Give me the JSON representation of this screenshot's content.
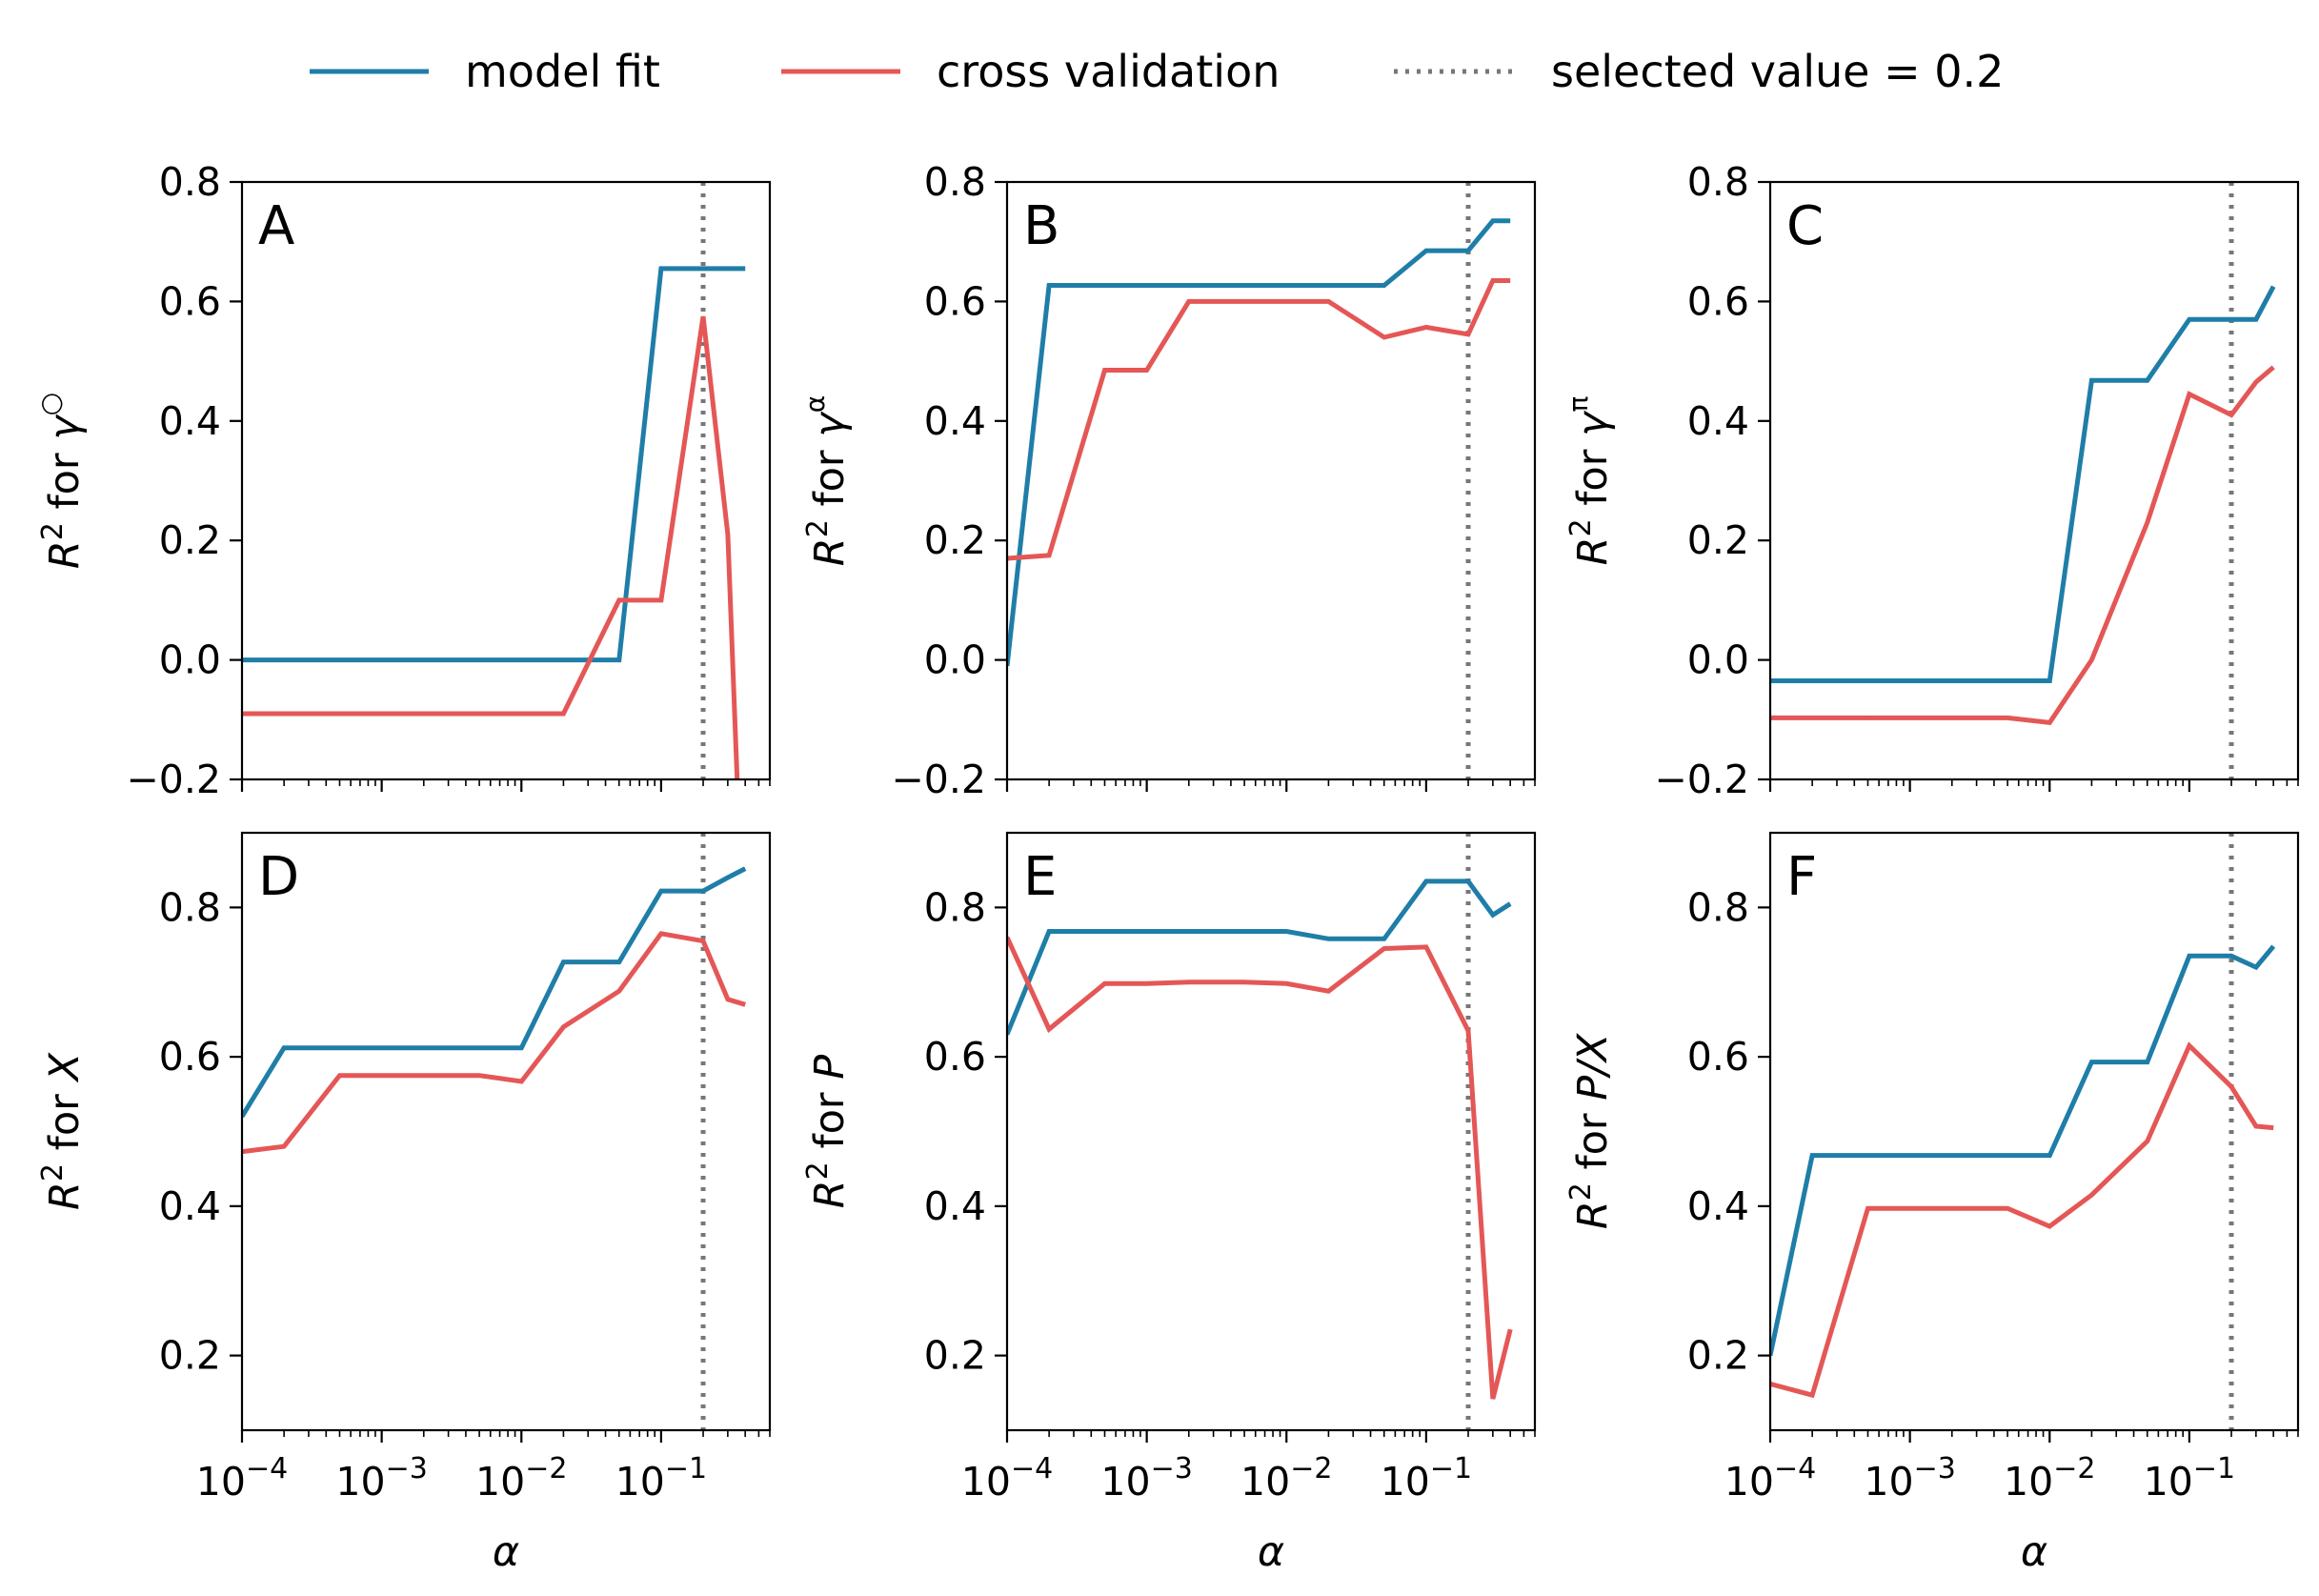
{
  "colors": {
    "model_fit": "#1f7ea8",
    "cross_validation": "#e45756",
    "selected": "#777777"
  },
  "legend": {
    "model_fit": "model fit",
    "cross_validation": "cross validation",
    "selected": "selected value = 0.2"
  },
  "chart_data": [
    {
      "panel": "A",
      "type": "line",
      "ylabel_prefix": "R",
      "ylabel_sup": "2",
      "ylabel_for": " for ",
      "ylabel_var": "γ",
      "ylabel_var_sup": "○",
      "xlabel": "",
      "xscale": "log",
      "xlim": [
        0.0001,
        0.6
      ],
      "ylim": [
        -0.2,
        0.8
      ],
      "yticks": [
        -0.2,
        0.0,
        0.2,
        0.4,
        0.6,
        0.8
      ],
      "ytick_labels": [
        "−0.2",
        "0.0",
        "0.2",
        "0.4",
        "0.6",
        "0.8"
      ],
      "selected_x": 0.2,
      "series": [
        {
          "name": "model fit",
          "x": [
            0.0001,
            0.0002,
            0.0005,
            0.001,
            0.002,
            0.005,
            0.01,
            0.02,
            0.05,
            0.1,
            0.2,
            0.3,
            0.4
          ],
          "y": [
            0.0,
            0.0,
            0.0,
            0.0,
            0.0,
            0.0,
            0.0,
            0.0,
            0.0,
            0.655,
            0.655,
            0.655,
            0.655
          ]
        },
        {
          "name": "cross validation",
          "x": [
            0.0001,
            0.0002,
            0.0005,
            0.001,
            0.002,
            0.005,
            0.01,
            0.02,
            0.05,
            0.1,
            0.2,
            0.3,
            0.35
          ],
          "y": [
            -0.09,
            -0.09,
            -0.09,
            -0.09,
            -0.09,
            -0.09,
            -0.09,
            -0.09,
            0.1,
            0.1,
            0.575,
            0.21,
            -0.2
          ]
        }
      ]
    },
    {
      "panel": "B",
      "type": "line",
      "ylabel_prefix": "R",
      "ylabel_sup": "2",
      "ylabel_for": " for ",
      "ylabel_var": "γ",
      "ylabel_var_sup": "α",
      "xlabel": "",
      "xscale": "log",
      "xlim": [
        0.0001,
        0.6
      ],
      "ylim": [
        -0.2,
        0.8
      ],
      "yticks": [
        -0.2,
        0.0,
        0.2,
        0.4,
        0.6,
        0.8
      ],
      "ytick_labels": [
        "−0.2",
        "0.0",
        "0.2",
        "0.4",
        "0.6",
        "0.8"
      ],
      "selected_x": 0.2,
      "series": [
        {
          "name": "model fit",
          "x": [
            0.0001,
            0.0002,
            0.0005,
            0.001,
            0.002,
            0.005,
            0.01,
            0.02,
            0.05,
            0.1,
            0.2,
            0.3,
            0.4
          ],
          "y": [
            -0.01,
            0.627,
            0.627,
            0.627,
            0.627,
            0.627,
            0.627,
            0.627,
            0.627,
            0.685,
            0.685,
            0.735,
            0.735
          ]
        },
        {
          "name": "cross validation",
          "x": [
            0.0001,
            0.0002,
            0.0005,
            0.001,
            0.002,
            0.005,
            0.01,
            0.02,
            0.05,
            0.1,
            0.2,
            0.3,
            0.4
          ],
          "y": [
            0.17,
            0.175,
            0.485,
            0.485,
            0.6,
            0.6,
            0.6,
            0.6,
            0.54,
            0.557,
            0.545,
            0.635,
            0.635
          ]
        }
      ]
    },
    {
      "panel": "C",
      "type": "line",
      "ylabel_prefix": "R",
      "ylabel_sup": "2",
      "ylabel_for": " for ",
      "ylabel_var": "γ",
      "ylabel_var_sup": "π",
      "xlabel": "",
      "xscale": "log",
      "xlim": [
        0.0001,
        0.6
      ],
      "ylim": [
        -0.2,
        0.8
      ],
      "yticks": [
        -0.2,
        0.0,
        0.2,
        0.4,
        0.6,
        0.8
      ],
      "ytick_labels": [
        "−0.2",
        "0.0",
        "0.2",
        "0.4",
        "0.6",
        "0.8"
      ],
      "selected_x": 0.2,
      "series": [
        {
          "name": "model fit",
          "x": [
            0.0001,
            0.0002,
            0.0005,
            0.001,
            0.002,
            0.005,
            0.01,
            0.02,
            0.05,
            0.1,
            0.2,
            0.3,
            0.4
          ],
          "y": [
            -0.035,
            -0.035,
            -0.035,
            -0.035,
            -0.035,
            -0.035,
            -0.035,
            0.468,
            0.468,
            0.57,
            0.57,
            0.57,
            0.625
          ]
        },
        {
          "name": "cross validation",
          "x": [
            0.0001,
            0.0002,
            0.0005,
            0.001,
            0.002,
            0.005,
            0.01,
            0.02,
            0.05,
            0.1,
            0.2,
            0.3,
            0.4
          ],
          "y": [
            -0.097,
            -0.097,
            -0.097,
            -0.097,
            -0.097,
            -0.097,
            -0.105,
            0.0,
            0.23,
            0.445,
            0.41,
            0.465,
            0.49
          ]
        }
      ]
    },
    {
      "panel": "D",
      "type": "line",
      "ylabel_prefix": "R",
      "ylabel_sup": "2",
      "ylabel_for": " for ",
      "ylabel_var": "X",
      "ylabel_var_sup": "",
      "xlabel": "α",
      "xscale": "log",
      "xlim": [
        0.0001,
        0.6
      ],
      "ylim": [
        0.1,
        0.9
      ],
      "yticks": [
        0.2,
        0.4,
        0.6,
        0.8
      ],
      "ytick_labels": [
        "0.2",
        "0.4",
        "0.6",
        "0.8"
      ],
      "selected_x": 0.2,
      "series": [
        {
          "name": "model fit",
          "x": [
            0.0001,
            0.0002,
            0.0005,
            0.001,
            0.002,
            0.005,
            0.01,
            0.02,
            0.05,
            0.1,
            0.2,
            0.3,
            0.4
          ],
          "y": [
            0.52,
            0.612,
            0.612,
            0.612,
            0.612,
            0.612,
            0.612,
            0.727,
            0.727,
            0.822,
            0.822,
            0.84,
            0.852
          ]
        },
        {
          "name": "cross validation",
          "x": [
            0.0001,
            0.0002,
            0.0005,
            0.001,
            0.002,
            0.005,
            0.01,
            0.02,
            0.05,
            0.1,
            0.2,
            0.3,
            0.4
          ],
          "y": [
            0.473,
            0.48,
            0.575,
            0.575,
            0.575,
            0.575,
            0.567,
            0.64,
            0.688,
            0.765,
            0.755,
            0.677,
            0.67
          ]
        }
      ]
    },
    {
      "panel": "E",
      "type": "line",
      "ylabel_prefix": "R",
      "ylabel_sup": "2",
      "ylabel_for": " for ",
      "ylabel_var": "P",
      "ylabel_var_sup": "",
      "xlabel": "α",
      "xscale": "log",
      "xlim": [
        0.0001,
        0.6
      ],
      "ylim": [
        0.1,
        0.9
      ],
      "yticks": [
        0.2,
        0.4,
        0.6,
        0.8
      ],
      "ytick_labels": [
        "0.2",
        "0.4",
        "0.6",
        "0.8"
      ],
      "selected_x": 0.2,
      "series": [
        {
          "name": "model fit",
          "x": [
            0.0001,
            0.0002,
            0.0005,
            0.001,
            0.002,
            0.005,
            0.01,
            0.02,
            0.05,
            0.1,
            0.2,
            0.3,
            0.4
          ],
          "y": [
            0.63,
            0.768,
            0.768,
            0.768,
            0.768,
            0.768,
            0.768,
            0.758,
            0.758,
            0.835,
            0.835,
            0.79,
            0.805
          ]
        },
        {
          "name": "cross validation",
          "x": [
            0.0001,
            0.0002,
            0.0005,
            0.001,
            0.002,
            0.005,
            0.01,
            0.02,
            0.05,
            0.1,
            0.2,
            0.3,
            0.4
          ],
          "y": [
            0.76,
            0.637,
            0.698,
            0.698,
            0.7,
            0.7,
            0.698,
            0.688,
            0.745,
            0.747,
            0.635,
            0.142,
            0.235
          ]
        }
      ]
    },
    {
      "panel": "F",
      "type": "line",
      "ylabel_prefix": "R",
      "ylabel_sup": "2",
      "ylabel_for": " for ",
      "ylabel_var": "P/X",
      "ylabel_var_sup": "",
      "xlabel": "α",
      "xscale": "log",
      "xlim": [
        0.0001,
        0.6
      ],
      "ylim": [
        0.1,
        0.9
      ],
      "yticks": [
        0.2,
        0.4,
        0.6,
        0.8
      ],
      "ytick_labels": [
        "0.2",
        "0.4",
        "0.6",
        "0.8"
      ],
      "selected_x": 0.2,
      "series": [
        {
          "name": "model fit",
          "x": [
            0.0001,
            0.0002,
            0.0005,
            0.001,
            0.002,
            0.005,
            0.01,
            0.02,
            0.05,
            0.1,
            0.2,
            0.3,
            0.4
          ],
          "y": [
            0.2,
            0.468,
            0.468,
            0.468,
            0.468,
            0.468,
            0.468,
            0.593,
            0.593,
            0.735,
            0.735,
            0.72,
            0.748
          ]
        },
        {
          "name": "cross validation",
          "x": [
            0.0001,
            0.0002,
            0.0005,
            0.001,
            0.002,
            0.005,
            0.01,
            0.02,
            0.05,
            0.1,
            0.2,
            0.3,
            0.4
          ],
          "y": [
            0.162,
            0.147,
            0.397,
            0.397,
            0.397,
            0.397,
            0.373,
            0.415,
            0.487,
            0.615,
            0.56,
            0.507,
            0.505
          ]
        }
      ]
    }
  ],
  "xtick_labels": [
    {
      "base": "10",
      "exp": "−4"
    },
    {
      "base": "10",
      "exp": "−3"
    },
    {
      "base": "10",
      "exp": "−2"
    },
    {
      "base": "10",
      "exp": "−1"
    }
  ]
}
